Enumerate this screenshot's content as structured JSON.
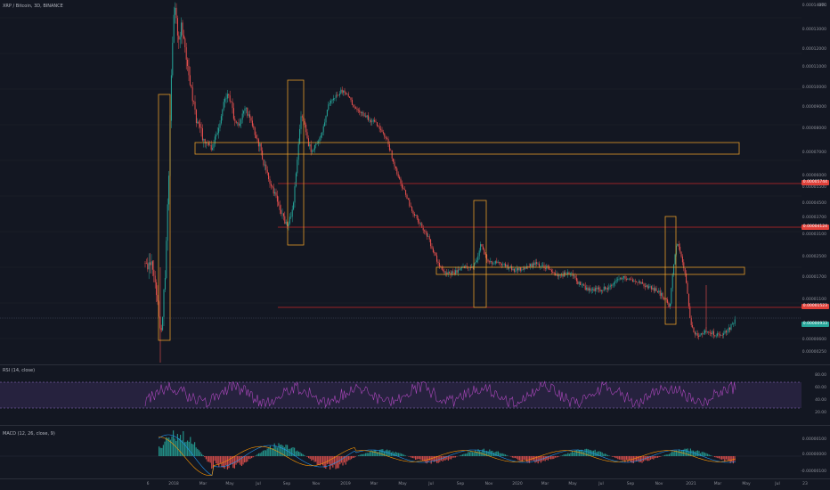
{
  "header": {
    "symbol_line": "XRP / Bitcoin, 3D, BINANCE",
    "currency": "BTC"
  },
  "price_axis": {
    "labels": [
      "0.00014000",
      "0.00013000",
      "0.00012000",
      "0.00011000",
      "0.00010000",
      "0.00009000",
      "0.00008000",
      "0.00007000",
      "0.00006000",
      "0.00005500",
      "0.00004500",
      "0.00003700",
      "0.00003100",
      "0.00002500",
      "0.00001700",
      "0.00001100",
      "0.00000600",
      "0.00000250"
    ],
    "tags": [
      {
        "text": "0.00005744",
        "color": "#e0413a"
      },
      {
        "text": "0.00004124",
        "color": "#e0413a"
      },
      {
        "text": "0.00001523",
        "color": "#e0413a"
      },
      {
        "text": "0.00000933",
        "color": "#26a69a"
      }
    ]
  },
  "rsi": {
    "legend": "RSI (14, close)",
    "labels": [
      "80.00",
      "60.00",
      "40.00",
      "20.00"
    ]
  },
  "macd": {
    "legend": "MACD (12, 26, close, 9)",
    "labels": [
      "0.00000100",
      "0.00000000",
      "-0.00000100"
    ]
  },
  "time_axis": [
    "6",
    "2018",
    "Mar",
    "May",
    "Jul",
    "Sep",
    "Nov",
    "2019",
    "Mar",
    "May",
    "Jul",
    "Sep",
    "Nov",
    "2020",
    "Mar",
    "May",
    "Jul",
    "Sep",
    "Nov",
    "2021",
    "Mar",
    "May",
    "Jul",
    "23"
  ],
  "colors": {
    "up": "#26a69a",
    "down": "#ef5350",
    "box": "#e39a2a",
    "hline": "#c62828",
    "rsi_band": "#7e57c2"
  }
}
